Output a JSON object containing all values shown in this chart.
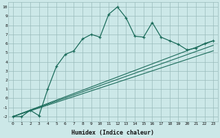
{
  "xlabel": "Humidex (Indice chaleur)",
  "bg_color": "#cce8e8",
  "grid_color": "#99bbbb",
  "line_color": "#1a6b5a",
  "x_ticks": [
    0,
    1,
    2,
    3,
    4,
    5,
    6,
    7,
    8,
    9,
    10,
    11,
    12,
    13,
    14,
    15,
    16,
    17,
    18,
    19,
    20,
    21,
    22,
    23
  ],
  "y_ticks": [
    -2,
    -1,
    0,
    1,
    2,
    3,
    4,
    5,
    6,
    7,
    8,
    9,
    10
  ],
  "ylim": [
    -2.5,
    10.5
  ],
  "xlim": [
    -0.5,
    23.5
  ],
  "main_x": [
    0,
    1,
    2,
    3,
    4,
    5,
    6,
    7,
    8,
    9,
    10,
    11,
    12,
    13,
    14,
    15,
    16,
    17,
    18,
    19,
    20,
    21,
    22,
    23
  ],
  "main_y": [
    -2.0,
    -2.0,
    -1.3,
    -1.9,
    1.0,
    3.5,
    4.8,
    5.2,
    6.5,
    7.0,
    6.7,
    9.2,
    10.0,
    8.8,
    6.8,
    6.7,
    8.3,
    6.7,
    6.3,
    5.9,
    5.3,
    5.5,
    6.0,
    6.3
  ],
  "line1_y": [
    -2.0,
    6.3
  ],
  "line1_x": [
    0,
    23
  ],
  "line2_y": [
    -2.0,
    5.8
  ],
  "line2_x": [
    0,
    23
  ],
  "line3_y": [
    -2.0,
    5.2
  ],
  "line3_x": [
    0,
    23
  ]
}
